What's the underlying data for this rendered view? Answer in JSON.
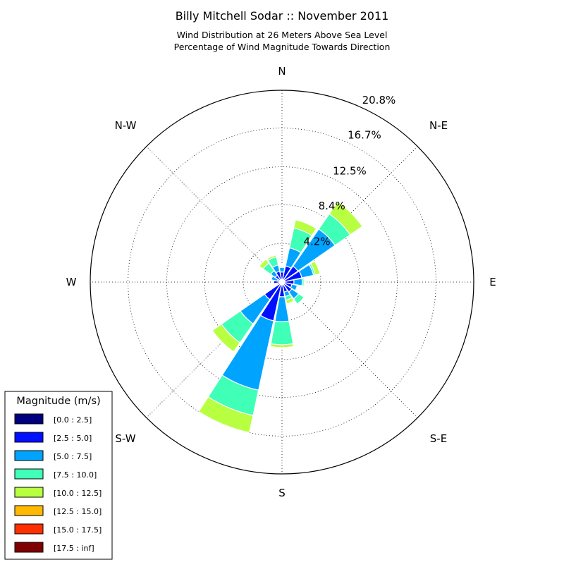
{
  "chart_data": {
    "type": "windrose",
    "title": "Billy Mitchell Sodar :: November 2011",
    "subtitle_lines": [
      "Wind Distribution at 26 Meters Above Sea Level",
      "Percentage of Wind Magnitude Towards Direction"
    ],
    "direction_labels": [
      "N",
      "N-E",
      "E",
      "S-E",
      "S",
      "S-W",
      "W",
      "N-W"
    ],
    "radial_ticks": [
      "4.2%",
      "8.4%",
      "12.5%",
      "16.7%",
      "20.8%"
    ],
    "radial_tick_values": [
      4.2,
      8.4,
      12.5,
      16.7,
      20.8
    ],
    "r_max": 20.8,
    "grid": true,
    "legend": {
      "title": "Magnitude (m/s)",
      "placement": "bottom-left",
      "bins": [
        {
          "label": "[0.0 : 2.5]",
          "color": "#00007f"
        },
        {
          "label": "[2.5 : 5.0]",
          "color": "#0010ff"
        },
        {
          "label": "[5.0 : 7.5]",
          "color": "#00a4ff"
        },
        {
          "label": "[7.5 : 10.0]",
          "color": "#40ffb7"
        },
        {
          "label": "[10.0 : 12.5]",
          "color": "#b7ff40"
        },
        {
          "label": "[12.5 : 15.0]",
          "color": "#ffb900"
        },
        {
          "label": "[15.0 : 17.5]",
          "color": "#ff3000"
        },
        {
          "label": "[17.5 : inf]",
          "color": "#7f0000"
        }
      ]
    },
    "sector_width_deg": 22.5,
    "sector_gap_deg": 2,
    "sectors": [
      {
        "direction_deg": 0,
        "cumulative": [
          0.3,
          1.1,
          1.6,
          1.7,
          1.7,
          1.8
        ]
      },
      {
        "direction_deg": 22.5,
        "cumulative": [
          0.3,
          1.8,
          3.8,
          6.0,
          6.9
        ]
      },
      {
        "direction_deg": 45,
        "cumulative": [
          0.3,
          2.1,
          7.0,
          9.0,
          10.6
        ]
      },
      {
        "direction_deg": 67.5,
        "cumulative": [
          0.3,
          2.2,
          3.5,
          3.7,
          4.2
        ]
      },
      {
        "direction_deg": 90,
        "cumulative": [
          0.3,
          1.3,
          2.2,
          2.4,
          2.5
        ]
      },
      {
        "direction_deg": 112.5,
        "cumulative": [
          0.3,
          1.1,
          1.7,
          1.8
        ]
      },
      {
        "direction_deg": 135,
        "cumulative": [
          0.3,
          1.3,
          2.2,
          2.9,
          3.0
        ]
      },
      {
        "direction_deg": 157.5,
        "cumulative": [
          0.3,
          1.1,
          1.6,
          2.0,
          2.4
        ]
      },
      {
        "direction_deg": 180,
        "cumulative": [
          0.3,
          1.6,
          4.3,
          6.8,
          7.1
        ]
      },
      {
        "direction_deg": 202.5,
        "cumulative": [
          0.3,
          4.3,
          12.0,
          14.8,
          16.7
        ]
      },
      {
        "direction_deg": 225,
        "cumulative": [
          0.3,
          2.3,
          5.5,
          8.0,
          9.2
        ]
      },
      {
        "direction_deg": 247.5,
        "cumulative": [
          0.3,
          0.5
        ]
      },
      {
        "direction_deg": 270,
        "cumulative": [
          0.3,
          0.9,
          1.0
        ]
      },
      {
        "direction_deg": 292.5,
        "cumulative": [
          0.3,
          0.5,
          1.2,
          1.3
        ]
      },
      {
        "direction_deg": 315,
        "cumulative": [
          0.3,
          0.9,
          1.5,
          2.5,
          3.0
        ]
      },
      {
        "direction_deg": 337.5,
        "cumulative": [
          0.3,
          1.2,
          1.9,
          2.8,
          3.0
        ]
      }
    ]
  }
}
